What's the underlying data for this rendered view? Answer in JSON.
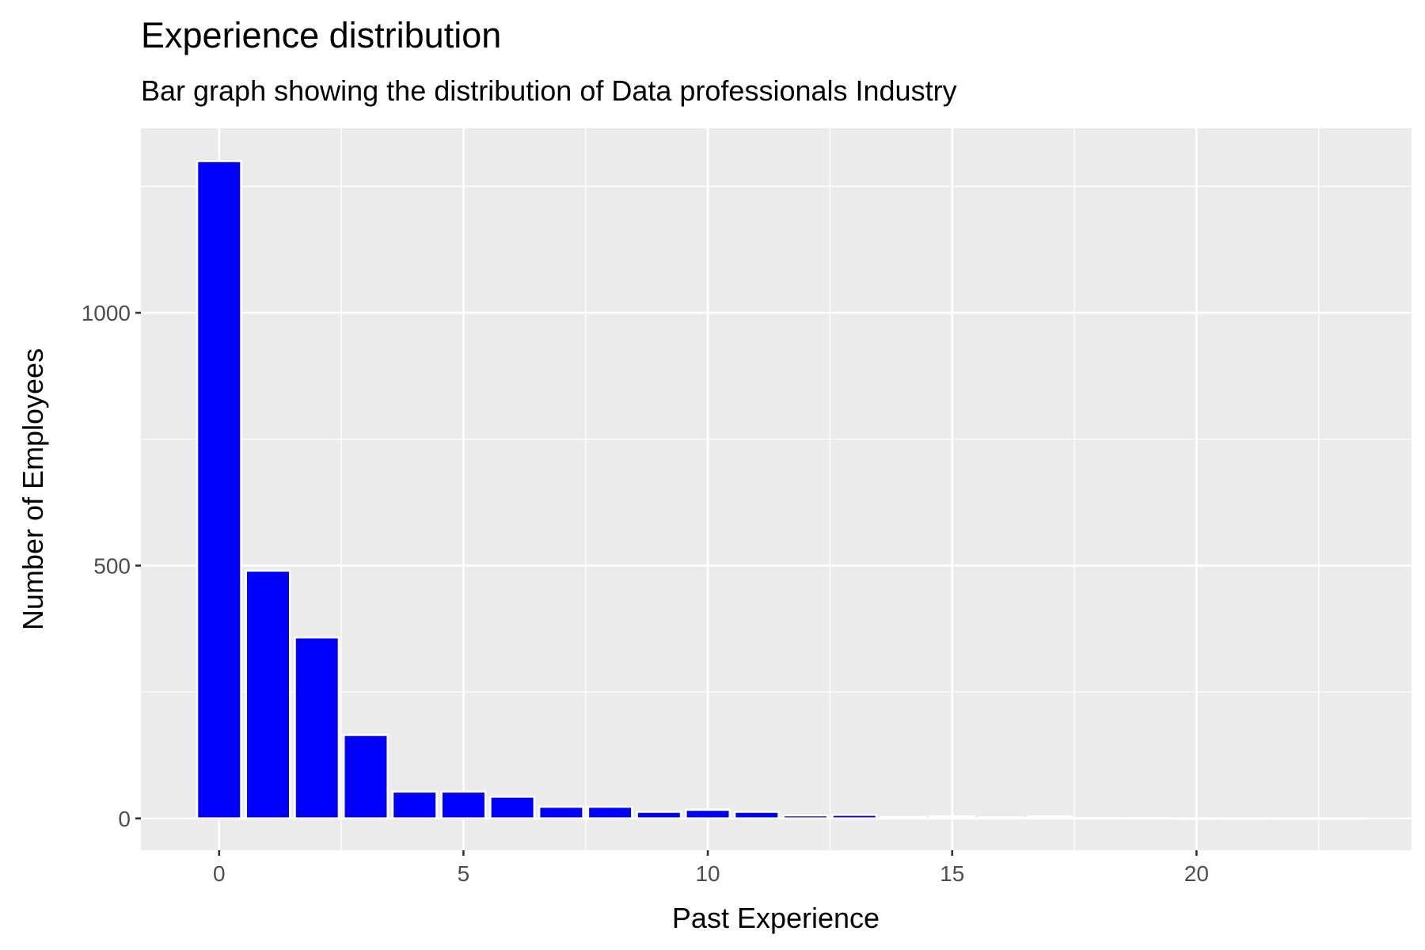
{
  "chart_data": {
    "type": "bar",
    "title": "Experience distribution",
    "subtitle": "Bar graph showing the distribution of Data professionals Industry",
    "xlabel": "Past Experience",
    "ylabel": "Number of Employees",
    "x": [
      0,
      1,
      2,
      3,
      4,
      5,
      6,
      7,
      8,
      9,
      10,
      11,
      12,
      13,
      14,
      15,
      16,
      17,
      18,
      19,
      20,
      21,
      22,
      23
    ],
    "values": [
      1300,
      490,
      358,
      165,
      53,
      53,
      43,
      23,
      23,
      13,
      17,
      13,
      6,
      7,
      3,
      4,
      2,
      4,
      1,
      1,
      0,
      0,
      0,
      0
    ],
    "xlim": [
      -1.6,
      24.4
    ],
    "ylim": [
      -63,
      1365
    ],
    "x_ticks": [
      0,
      5,
      10,
      15,
      20
    ],
    "x_tick_labels": [
      "0",
      "5",
      "10",
      "15",
      "20"
    ],
    "y_ticks": [
      0,
      500,
      1000
    ],
    "y_tick_labels": [
      "0",
      "500",
      "1000"
    ],
    "grid": true,
    "legend": "none",
    "colors": {
      "bar_fill": "#0000FF",
      "bar_outline": "#FFFFFF",
      "panel_background": "#EBEBEB",
      "gridline": "#FFFFFF",
      "tick_label": "#4D4D4D",
      "axis_tick": "#333333"
    }
  }
}
